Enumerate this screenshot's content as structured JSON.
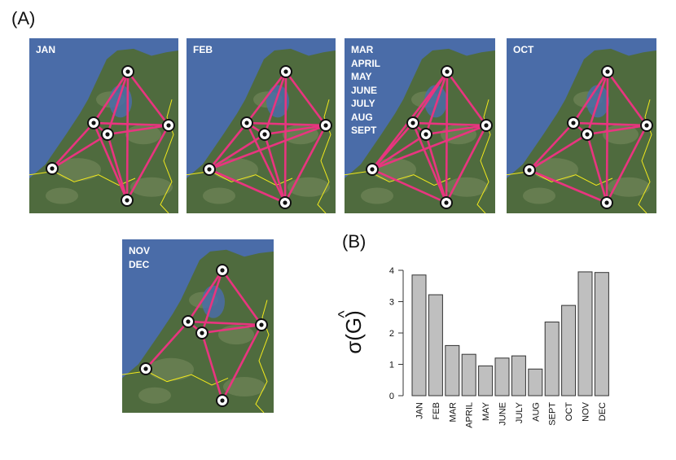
{
  "panel_a_label": "(A)",
  "panel_b_label": "(B)",
  "colors": {
    "sea": "#4a6ca8",
    "land": "#4f6b3e",
    "land_light": "#7a8c5e",
    "edge": "#e8357f",
    "border": "#f3ea1c",
    "bar": "#bfbfbf"
  },
  "maps": [
    {
      "labels": [
        "JAN"
      ]
    },
    {
      "labels": [
        "FEB"
      ]
    },
    {
      "labels": [
        "MAR",
        "APRIL",
        "MAY",
        "JUNE",
        "JULY",
        "AUG",
        "SEPT"
      ]
    },
    {
      "labels": [
        "OCT"
      ]
    },
    {
      "labels": [
        "NOV",
        "DEC"
      ]
    }
  ],
  "chart_data": {
    "type": "bar",
    "categories": [
      "JAN",
      "FEB",
      "MAR",
      "APRIL",
      "MAY",
      "JUNE",
      "JULY",
      "AUG",
      "SEPT",
      "OCT",
      "NOV",
      "DEC"
    ],
    "values": [
      3.85,
      3.22,
      1.6,
      1.32,
      0.95,
      1.2,
      1.27,
      0.85,
      2.35,
      2.88,
      3.95,
      3.93
    ],
    "ylabel": "σ(G)",
    "ylabel_hat": "^",
    "ylim": [
      0,
      4
    ],
    "yticks": [
      0,
      1,
      2,
      3,
      4
    ],
    "grid": false
  }
}
